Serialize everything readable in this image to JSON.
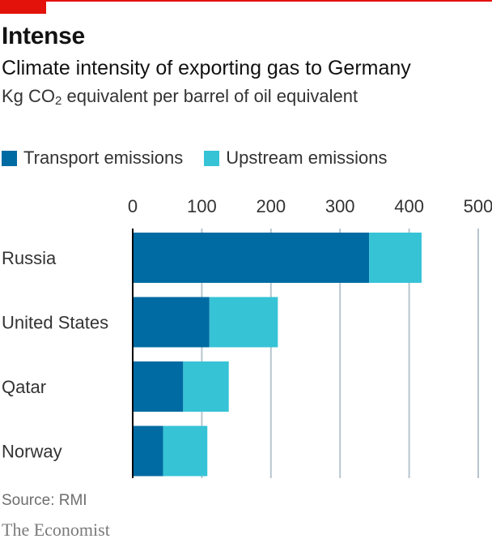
{
  "header": {
    "title": "Intense",
    "subtitle": "Climate intensity of exporting gas to Germany",
    "units_prefix": "Kg CO",
    "units_sub": "2",
    "units_suffix": " equivalent per barrel of oil equivalent"
  },
  "footer": {
    "source": "Source: RMI",
    "brand": "The Economist"
  },
  "colors": {
    "brand_red": "#e3120b",
    "transport": "#006ba2",
    "upstream": "#36c3d6",
    "gridline": "#b7c6cf",
    "axis": "#000000"
  },
  "chart_data": {
    "type": "bar",
    "orientation": "horizontal",
    "stacked": true,
    "categories": [
      "Russia",
      "United States",
      "Qatar",
      "Norway"
    ],
    "series": [
      {
        "name": "Transport emissions",
        "values": [
          342,
          111,
          73,
          44
        ]
      },
      {
        "name": "Upstream emissions",
        "values": [
          76,
          99,
          66,
          64
        ]
      }
    ],
    "xlim": [
      0,
      500
    ],
    "xticks": [
      "0",
      "100",
      "200",
      "300",
      "400",
      "500"
    ],
    "grid": true,
    "legend_position": "top-left"
  }
}
